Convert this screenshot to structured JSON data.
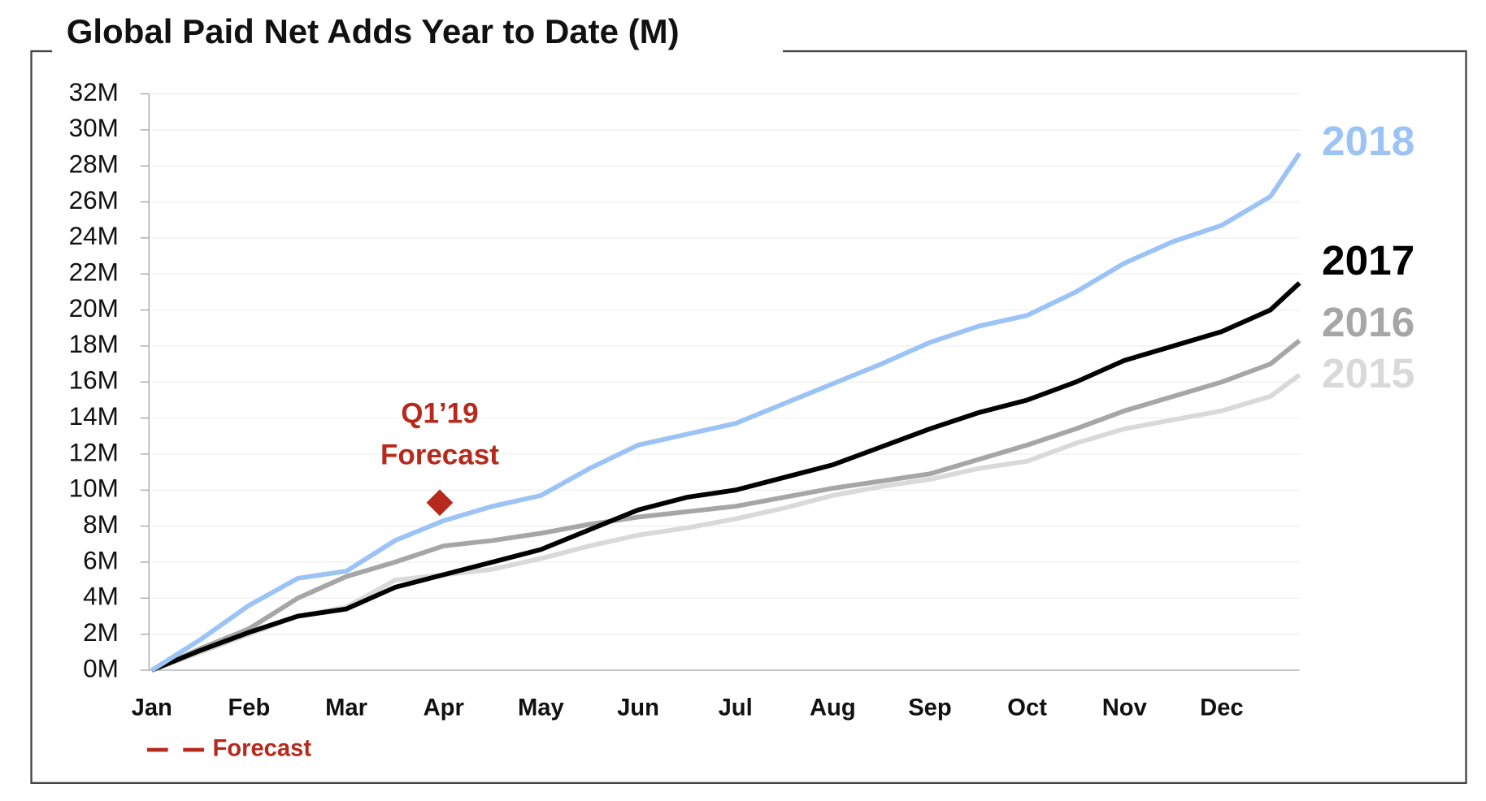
{
  "chart_data": {
    "type": "line",
    "title": "Global Paid Net Adds Year to Date (M)",
    "x": [
      0,
      0.5,
      1,
      1.5,
      2,
      2.5,
      3,
      3.5,
      4,
      4.5,
      5,
      5.5,
      6,
      6.5,
      7,
      7.5,
      8,
      8.5,
      9,
      9.5,
      10,
      10.5,
      11,
      11.5,
      11.8
    ],
    "series": [
      {
        "name": "2015",
        "color": "#d9d9d9",
        "values": [
          0,
          1.0,
          2.0,
          3.0,
          3.5,
          5.0,
          5.3,
          5.6,
          6.2,
          6.9,
          7.5,
          7.9,
          8.4,
          9.0,
          9.7,
          10.2,
          10.6,
          11.2,
          11.6,
          12.6,
          13.4,
          13.9,
          14.4,
          15.2,
          16.4
        ]
      },
      {
        "name": "2016",
        "color": "#a6a6a6",
        "values": [
          0,
          1.2,
          2.3,
          4.0,
          5.2,
          6.0,
          6.9,
          7.2,
          7.6,
          8.1,
          8.5,
          8.8,
          9.1,
          9.6,
          10.1,
          10.5,
          10.9,
          11.7,
          12.5,
          13.4,
          14.4,
          15.2,
          16.0,
          17.0,
          18.3
        ]
      },
      {
        "name": "2017",
        "color": "#000000",
        "values": [
          0,
          1.1,
          2.1,
          3.0,
          3.4,
          4.6,
          5.3,
          6.0,
          6.7,
          7.8,
          8.9,
          9.6,
          10.0,
          10.7,
          11.4,
          12.4,
          13.4,
          14.3,
          15.0,
          16.0,
          17.2,
          18.0,
          18.8,
          20.0,
          21.5
        ]
      },
      {
        "name": "2018",
        "color": "#9cc3f5",
        "values": [
          0,
          1.7,
          3.6,
          5.1,
          5.5,
          7.2,
          8.3,
          9.1,
          9.7,
          11.2,
          12.5,
          13.1,
          13.7,
          14.8,
          15.9,
          17.0,
          18.2,
          19.1,
          19.7,
          21.0,
          22.6,
          23.8,
          24.7,
          26.3,
          28.7
        ]
      }
    ],
    "forecast": {
      "legend": "Forecast",
      "annotation": [
        "Q1’19",
        "Forecast"
      ],
      "x": 2.96,
      "value": 9.3,
      "color": "#b52a1c"
    },
    "xlim": [
      0,
      11.8
    ],
    "xticks": [
      {
        "value": 0,
        "label": "Jan"
      },
      {
        "value": 1,
        "label": "Feb"
      },
      {
        "value": 2,
        "label": "Mar"
      },
      {
        "value": 3,
        "label": "Apr"
      },
      {
        "value": 4,
        "label": "May"
      },
      {
        "value": 5,
        "label": "Jun"
      },
      {
        "value": 6,
        "label": "Jul"
      },
      {
        "value": 7,
        "label": "Aug"
      },
      {
        "value": 8,
        "label": "Sep"
      },
      {
        "value": 9,
        "label": "Oct"
      },
      {
        "value": 10,
        "label": "Nov"
      },
      {
        "value": 11,
        "label": "Dec"
      }
    ],
    "ylim": [
      0,
      32
    ],
    "yticks": [
      {
        "value": 0,
        "label": "0M"
      },
      {
        "value": 2,
        "label": "2M"
      },
      {
        "value": 4,
        "label": "4M"
      },
      {
        "value": 6,
        "label": "6M"
      },
      {
        "value": 8,
        "label": "8M"
      },
      {
        "value": 10,
        "label": "10M"
      },
      {
        "value": 12,
        "label": "12M"
      },
      {
        "value": 14,
        "label": "14M"
      },
      {
        "value": 16,
        "label": "16M"
      },
      {
        "value": 18,
        "label": "18M"
      },
      {
        "value": 20,
        "label": "20M"
      },
      {
        "value": 22,
        "label": "22M"
      },
      {
        "value": 24,
        "label": "24M"
      },
      {
        "value": 26,
        "label": "26M"
      },
      {
        "value": 28,
        "label": "28M"
      },
      {
        "value": 30,
        "label": "30M"
      },
      {
        "value": 32,
        "label": "32M"
      }
    ],
    "grid": true
  }
}
